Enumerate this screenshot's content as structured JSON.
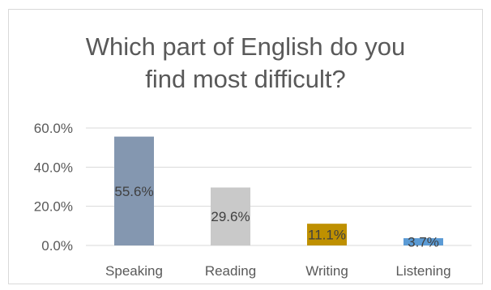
{
  "chart_data": {
    "type": "bar",
    "title_lines": [
      "Which part of English do you",
      "find most difficult?"
    ],
    "categories": [
      "Speaking",
      "Reading",
      "Writing",
      "Listening"
    ],
    "values": [
      55.6,
      29.6,
      11.1,
      3.7
    ],
    "data_labels": [
      "55.6%",
      "29.6%",
      "11.1%",
      "3.7%"
    ],
    "bar_colors": [
      "#8497b0",
      "#c9c9c9",
      "#bf9000",
      "#5b9bd5"
    ],
    "ylim": [
      0,
      60
    ],
    "yticks": [
      0,
      20,
      40,
      60
    ],
    "ytick_labels": [
      "0.0%",
      "20.0%",
      "40.0%",
      "60.0%"
    ],
    "grid": true,
    "gridline_color": "#d9d9d9",
    "xlabel": "",
    "ylabel": ""
  }
}
